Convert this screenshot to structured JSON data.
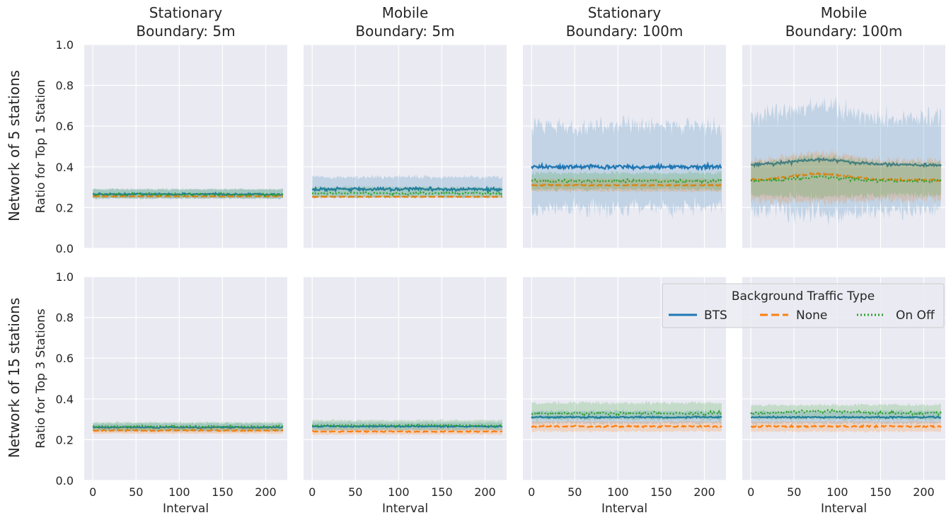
{
  "figure": {
    "row_titles": [
      "Network of 5 stations",
      "Network of 15 stations"
    ],
    "legend": {
      "title": "Background Traffic Type",
      "entries": [
        {
          "name": "BTS",
          "color": "#1f77b4",
          "style": "solid"
        },
        {
          "name": "None",
          "color": "#ff7f0e",
          "style": "dashed"
        },
        {
          "name": "On Off",
          "color": "#2ca02c",
          "style": "dotted"
        }
      ],
      "placement": "upper right of bottom row, spanning the last two panels"
    },
    "background": "#eaeaf2",
    "grid": true
  },
  "chart_data": [
    {
      "type": "line",
      "title": [
        "Stationary",
        "Boundary: 5m"
      ],
      "xlabel": "",
      "ylabel": "Ratio for Top 1 Station",
      "xlim": [
        -10,
        225
      ],
      "ylim": [
        0,
        1
      ],
      "xticks": [
        0,
        50,
        100,
        150,
        200
      ],
      "yticks": [
        "0.0",
        "0.2",
        "0.4",
        "0.6",
        "0.8",
        "1.0"
      ],
      "x_range": [
        0,
        220
      ],
      "series": [
        {
          "name": "BTS",
          "mean": 0.265,
          "noise": 0.008,
          "band_lo": 0.245,
          "band_hi": 0.29
        },
        {
          "name": "None",
          "mean": 0.255,
          "noise": 0.002,
          "band_lo": 0.25,
          "band_hi": 0.262
        },
        {
          "name": "On Off",
          "mean": 0.265,
          "noise": 0.008,
          "band_lo": 0.245,
          "band_hi": 0.29
        }
      ]
    },
    {
      "type": "line",
      "title": [
        "Mobile",
        "Boundary: 5m"
      ],
      "xlabel": "",
      "ylabel": "",
      "xlim": [
        -10,
        225
      ],
      "ylim": [
        0,
        1
      ],
      "xticks": [
        0,
        50,
        100,
        150,
        200
      ],
      "yticks": [],
      "x_range": [
        0,
        220
      ],
      "series": [
        {
          "name": "BTS",
          "mean": 0.29,
          "noise": 0.012,
          "band_lo": 0.255,
          "band_hi": 0.35
        },
        {
          "name": "None",
          "mean": 0.253,
          "noise": 0.002,
          "band_lo": 0.248,
          "band_hi": 0.26
        },
        {
          "name": "On Off",
          "mean": 0.27,
          "noise": 0.008,
          "band_lo": 0.25,
          "band_hi": 0.3
        }
      ]
    },
    {
      "type": "line",
      "title": [
        "Stationary",
        "Boundary: 100m"
      ],
      "xlabel": "",
      "ylabel": "",
      "xlim": [
        -10,
        225
      ],
      "ylim": [
        0,
        1
      ],
      "xticks": [
        0,
        50,
        100,
        150,
        200
      ],
      "yticks": [],
      "x_range": [
        0,
        220
      ],
      "series": [
        {
          "name": "BTS",
          "mean": 0.4,
          "noise": 0.015,
          "band_lo": 0.2,
          "band_hi": 0.6
        },
        {
          "name": "None",
          "mean": 0.31,
          "noise": 0.004,
          "band_lo": 0.28,
          "band_hi": 0.34
        },
        {
          "name": "On Off",
          "mean": 0.33,
          "noise": 0.01,
          "band_lo": 0.29,
          "band_hi": 0.37
        }
      ]
    },
    {
      "type": "line",
      "title": [
        "Mobile",
        "Boundary: 100m"
      ],
      "xlabel": "",
      "ylabel": "",
      "xlim": [
        -10,
        225
      ],
      "ylim": [
        0,
        1
      ],
      "xticks": [
        0,
        50,
        100,
        150,
        200
      ],
      "yticks": [],
      "x_range": [
        0,
        220
      ],
      "series": [
        {
          "name": "BTS",
          "mean": 0.41,
          "hump": 0.025,
          "noise": 0.012,
          "band_lo": 0.19,
          "band_hi": 0.64,
          "band_hump": 0.06
        },
        {
          "name": "None",
          "mean": 0.335,
          "hump": 0.03,
          "noise": 0.008,
          "band_lo": 0.24,
          "band_hi": 0.43,
          "band_hump": 0.04
        },
        {
          "name": "On Off",
          "mean": 0.33,
          "hump": 0.02,
          "noise": 0.01,
          "band_lo": 0.26,
          "band_hi": 0.42,
          "band_hump": 0.03
        }
      ]
    },
    {
      "type": "line",
      "title": "",
      "xlabel": "Interval",
      "ylabel": "Ratio for Top 3 Stations",
      "xlim": [
        -10,
        225
      ],
      "ylim": [
        0,
        1
      ],
      "xticks": [
        0,
        50,
        100,
        150,
        200
      ],
      "yticks": [
        "0.0",
        "0.2",
        "0.4",
        "0.6",
        "0.8",
        "1.0"
      ],
      "x_range": [
        0,
        220
      ],
      "series": [
        {
          "name": "BTS",
          "mean": 0.26,
          "noise": 0.005,
          "band_lo": 0.24,
          "band_hi": 0.28
        },
        {
          "name": "None",
          "mean": 0.245,
          "noise": 0.005,
          "band_lo": 0.23,
          "band_hi": 0.26
        },
        {
          "name": "On Off",
          "mean": 0.265,
          "noise": 0.006,
          "band_lo": 0.245,
          "band_hi": 0.285
        }
      ]
    },
    {
      "type": "line",
      "title": "",
      "xlabel": "Interval",
      "ylabel": "",
      "xlim": [
        -10,
        225
      ],
      "ylim": [
        0,
        1
      ],
      "xticks": [
        0,
        50,
        100,
        150,
        200
      ],
      "yticks": [],
      "x_range": [
        0,
        220
      ],
      "series": [
        {
          "name": "BTS",
          "mean": 0.265,
          "noise": 0.005,
          "band_lo": 0.245,
          "band_hi": 0.285
        },
        {
          "name": "None",
          "mean": 0.24,
          "noise": 0.004,
          "band_lo": 0.225,
          "band_hi": 0.255
        },
        {
          "name": "On Off",
          "mean": 0.27,
          "noise": 0.006,
          "band_lo": 0.25,
          "band_hi": 0.295
        }
      ]
    },
    {
      "type": "line",
      "title": "",
      "xlabel": "Interval",
      "ylabel": "",
      "xlim": [
        -10,
        225
      ],
      "ylim": [
        0,
        1
      ],
      "xticks": [
        0,
        50,
        100,
        150,
        200
      ],
      "yticks": [],
      "x_range": [
        0,
        220
      ],
      "series": [
        {
          "name": "BTS",
          "mean": 0.31,
          "noise": 0.006,
          "band_lo": 0.28,
          "band_hi": 0.34
        },
        {
          "name": "None",
          "mean": 0.265,
          "noise": 0.006,
          "band_lo": 0.24,
          "band_hi": 0.29
        },
        {
          "name": "On Off",
          "mean": 0.33,
          "noise": 0.01,
          "band_lo": 0.3,
          "band_hi": 0.38
        }
      ]
    },
    {
      "type": "line",
      "title": "",
      "xlabel": "Interval",
      "ylabel": "",
      "xlim": [
        -10,
        225
      ],
      "ylim": [
        0,
        1
      ],
      "xticks": [
        0,
        50,
        100,
        150,
        200
      ],
      "yticks": [],
      "x_range": [
        0,
        220
      ],
      "series": [
        {
          "name": "BTS",
          "mean": 0.31,
          "noise": 0.006,
          "band_lo": 0.28,
          "band_hi": 0.34
        },
        {
          "name": "None",
          "mean": 0.265,
          "noise": 0.006,
          "band_lo": 0.24,
          "band_hi": 0.29
        },
        {
          "name": "On Off",
          "mean": 0.33,
          "hump": 0.01,
          "noise": 0.01,
          "band_lo": 0.3,
          "band_hi": 0.37
        }
      ]
    }
  ]
}
